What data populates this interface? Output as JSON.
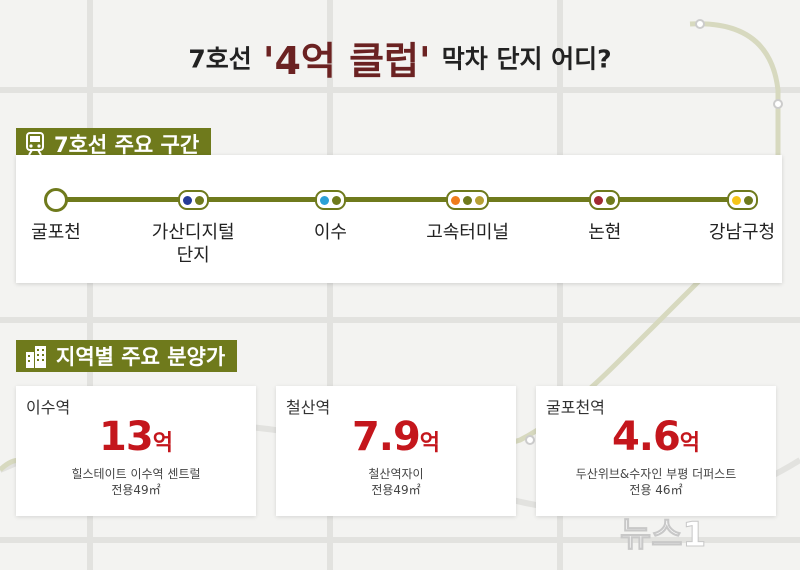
{
  "title": {
    "prefix": "7호선",
    "main": "'4억 클럽'",
    "suffix": "막차 단지 어디?"
  },
  "section_route": {
    "label": "7호선 주요 구간"
  },
  "section_region": {
    "label": "지역별 주요 분양가"
  },
  "colors": {
    "line7": "#6f7a1c",
    "price": "#c4161c",
    "header_bg": "#6f7a1c"
  },
  "stations": [
    {
      "name": "굴포천",
      "marker": "terminal-ring",
      "lines": []
    },
    {
      "name": "가산디지털 단지",
      "marker": "transfer",
      "lines": [
        "#263c96",
        "#6f7a1c"
      ]
    },
    {
      "name": "이수",
      "marker": "transfer",
      "lines": [
        "#2ca0d6",
        "#6f7a1c"
      ]
    },
    {
      "name": "고속터미널",
      "marker": "transfer",
      "lines": [
        "#ef7c1c",
        "#6f7a1c",
        "#b7a033"
      ]
    },
    {
      "name": "논현",
      "marker": "transfer",
      "lines": [
        "#a12a33",
        "#6f7a1c"
      ]
    },
    {
      "name": "강남구청",
      "marker": "transfer",
      "lines": [
        "#f5c518",
        "#6f7a1c"
      ]
    }
  ],
  "regions": [
    {
      "station": "이수역",
      "value": "13",
      "unit": "억",
      "complex": "힐스테이트 이수역 센트럴",
      "area": "전용49㎡"
    },
    {
      "station": "철산역",
      "value": "7.9",
      "unit": "억",
      "complex": "철산역자이",
      "area": "전용49㎡"
    },
    {
      "station": "굴포천역",
      "value": "4.6",
      "unit": "억",
      "complex": "두산위브&수자인 부평 더퍼스트",
      "area": "전용 46㎡"
    }
  ],
  "logo": {
    "text": "뉴스1",
    "icon": "news1-logo-icon"
  }
}
